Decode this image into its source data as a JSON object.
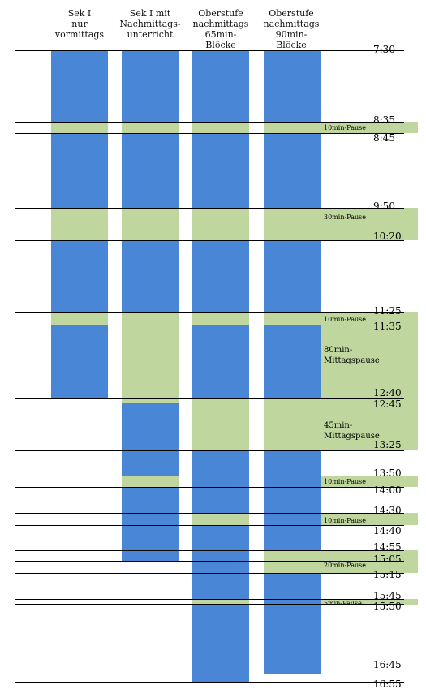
{
  "columns": [
    {
      "header": [
        "Sek I",
        "nur",
        "vormittags"
      ]
    },
    {
      "header": [
        "Sek I mit",
        "Nachmittags-",
        "unterricht"
      ]
    },
    {
      "header": [
        "Oberstufe",
        "nachmittags",
        "65min-",
        "Blöcke"
      ]
    },
    {
      "header": [
        "Oberstufe",
        "nachmittags",
        "90min-",
        "Blöcke"
      ]
    }
  ],
  "times": [
    "7:30",
    "8:35",
    "8:45",
    "9:50",
    "10:20",
    "11:25",
    "11:35",
    "12:40",
    "12:45",
    "13:25",
    "13:50",
    "14:00",
    "14:30",
    "14:40",
    "14:55",
    "15:05",
    "15:15",
    "15:45",
    "15:50",
    "16:45",
    "16:55"
  ],
  "pause_labels": {
    "p1": "10min-Pause",
    "p2": "30min-Pause",
    "p3": "10min-Pause",
    "p4": "80min-Mittagspause",
    "p5": "45min-Mittagspause",
    "p6": "10min-Pause",
    "p7": "10min-Pause",
    "p8": "20min-Pause",
    "p9": "5min-Pause"
  },
  "schedule": [
    [
      {
        "kind": "lesson",
        "start": "7:30",
        "end": "8:35"
      },
      {
        "kind": "pause",
        "start": "8:35",
        "end": "8:45"
      },
      {
        "kind": "lesson",
        "start": "8:45",
        "end": "9:50"
      },
      {
        "kind": "pause",
        "start": "9:50",
        "end": "10:20"
      },
      {
        "kind": "lesson",
        "start": "10:20",
        "end": "11:25"
      },
      {
        "kind": "pause",
        "start": "11:25",
        "end": "11:35"
      },
      {
        "kind": "lesson",
        "start": "11:35",
        "end": "12:40"
      }
    ],
    [
      {
        "kind": "lesson",
        "start": "7:30",
        "end": "8:35"
      },
      {
        "kind": "pause",
        "start": "8:35",
        "end": "8:45"
      },
      {
        "kind": "lesson",
        "start": "8:45",
        "end": "9:50"
      },
      {
        "kind": "pause",
        "start": "9:50",
        "end": "10:20"
      },
      {
        "kind": "lesson",
        "start": "10:20",
        "end": "11:25"
      },
      {
        "kind": "pause",
        "start": "11:25",
        "end": "12:45"
      },
      {
        "kind": "lesson",
        "start": "12:45",
        "end": "13:50"
      },
      {
        "kind": "pause",
        "start": "13:50",
        "end": "14:00"
      },
      {
        "kind": "lesson",
        "start": "14:00",
        "end": "15:05"
      }
    ],
    [
      {
        "kind": "lesson",
        "start": "7:30",
        "end": "8:35"
      },
      {
        "kind": "pause",
        "start": "8:35",
        "end": "8:45"
      },
      {
        "kind": "lesson",
        "start": "8:45",
        "end": "9:50"
      },
      {
        "kind": "pause",
        "start": "9:50",
        "end": "10:20"
      },
      {
        "kind": "lesson",
        "start": "10:20",
        "end": "11:25"
      },
      {
        "kind": "pause",
        "start": "11:25",
        "end": "11:35"
      },
      {
        "kind": "lesson",
        "start": "11:35",
        "end": "12:40"
      },
      {
        "kind": "pause",
        "start": "12:40",
        "end": "13:25"
      },
      {
        "kind": "lesson",
        "start": "13:25",
        "end": "14:30"
      },
      {
        "kind": "pause",
        "start": "14:30",
        "end": "14:40"
      },
      {
        "kind": "lesson",
        "start": "14:40",
        "end": "15:45"
      },
      {
        "kind": "pause",
        "start": "15:45",
        "end": "15:50"
      },
      {
        "kind": "lesson",
        "start": "15:50",
        "end": "16:55"
      }
    ],
    [
      {
        "kind": "lesson",
        "start": "7:30",
        "end": "8:35"
      },
      {
        "kind": "pause",
        "start": "8:35",
        "end": "8:45"
      },
      {
        "kind": "lesson",
        "start": "8:45",
        "end": "9:50"
      },
      {
        "kind": "pause",
        "start": "9:50",
        "end": "10:20"
      },
      {
        "kind": "lesson",
        "start": "10:20",
        "end": "11:25"
      },
      {
        "kind": "pause",
        "start": "11:25",
        "end": "11:35"
      },
      {
        "kind": "lesson",
        "start": "11:35",
        "end": "12:40"
      },
      {
        "kind": "pause",
        "start": "12:40",
        "end": "13:25"
      },
      {
        "kind": "lesson",
        "start": "13:25",
        "end": "14:55"
      },
      {
        "kind": "pause",
        "start": "14:55",
        "end": "15:15"
      },
      {
        "kind": "lesson",
        "start": "15:15",
        "end": "16:45"
      }
    ]
  ],
  "side_pauses": [
    {
      "label_key": "p1",
      "start": "8:35",
      "end": "8:45"
    },
    {
      "label_key": "p2",
      "start": "9:50",
      "end": "10:20"
    },
    {
      "label_key": "p3",
      "start": "11:25",
      "end": "11:35"
    },
    {
      "label_key": "p4",
      "start": "11:35",
      "end": "12:45"
    },
    {
      "label_key": "p5",
      "start": "12:45",
      "end": "13:25"
    },
    {
      "label_key": "p6",
      "start": "13:50",
      "end": "14:00"
    },
    {
      "label_key": "p7",
      "start": "14:30",
      "end": "14:40"
    },
    {
      "label_key": "p8",
      "start": "14:55",
      "end": "15:15"
    },
    {
      "label_key": "p9",
      "start": "15:45",
      "end": "15:50"
    }
  ],
  "colors": {
    "lesson": "#4a86d6",
    "pause": "#bfd69e",
    "line": "#000000"
  }
}
